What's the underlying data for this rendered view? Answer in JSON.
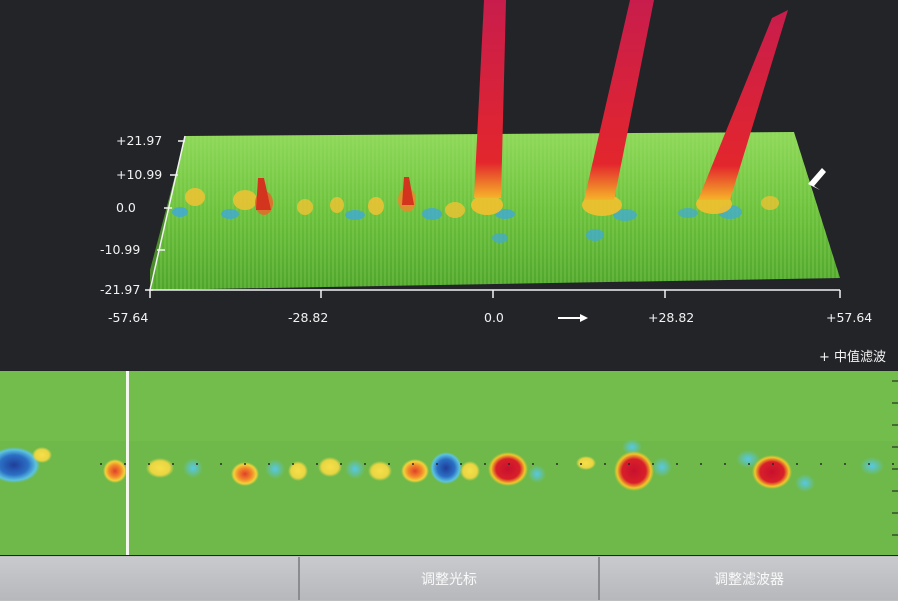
{
  "view3d": {
    "y_axis_ticks": [
      "+21.97",
      "+10.99",
      "0.0",
      "-10.99",
      "-21.97"
    ],
    "x_axis_ticks": [
      "-57.64",
      "-28.82",
      "0.0",
      "+28.82",
      "+57.64"
    ],
    "filter_label": "+ 中值滤波",
    "colors": {
      "surface": "#6fc43e",
      "peak": "#cc1c3c",
      "background": "#222428"
    }
  },
  "cscan": {
    "background_color": "#6fb94a",
    "cursor_color": "#f4f7ee"
  },
  "buttons": [
    {
      "label": ""
    },
    {
      "label": "调整光标"
    },
    {
      "label": "调整滤波器"
    }
  ]
}
